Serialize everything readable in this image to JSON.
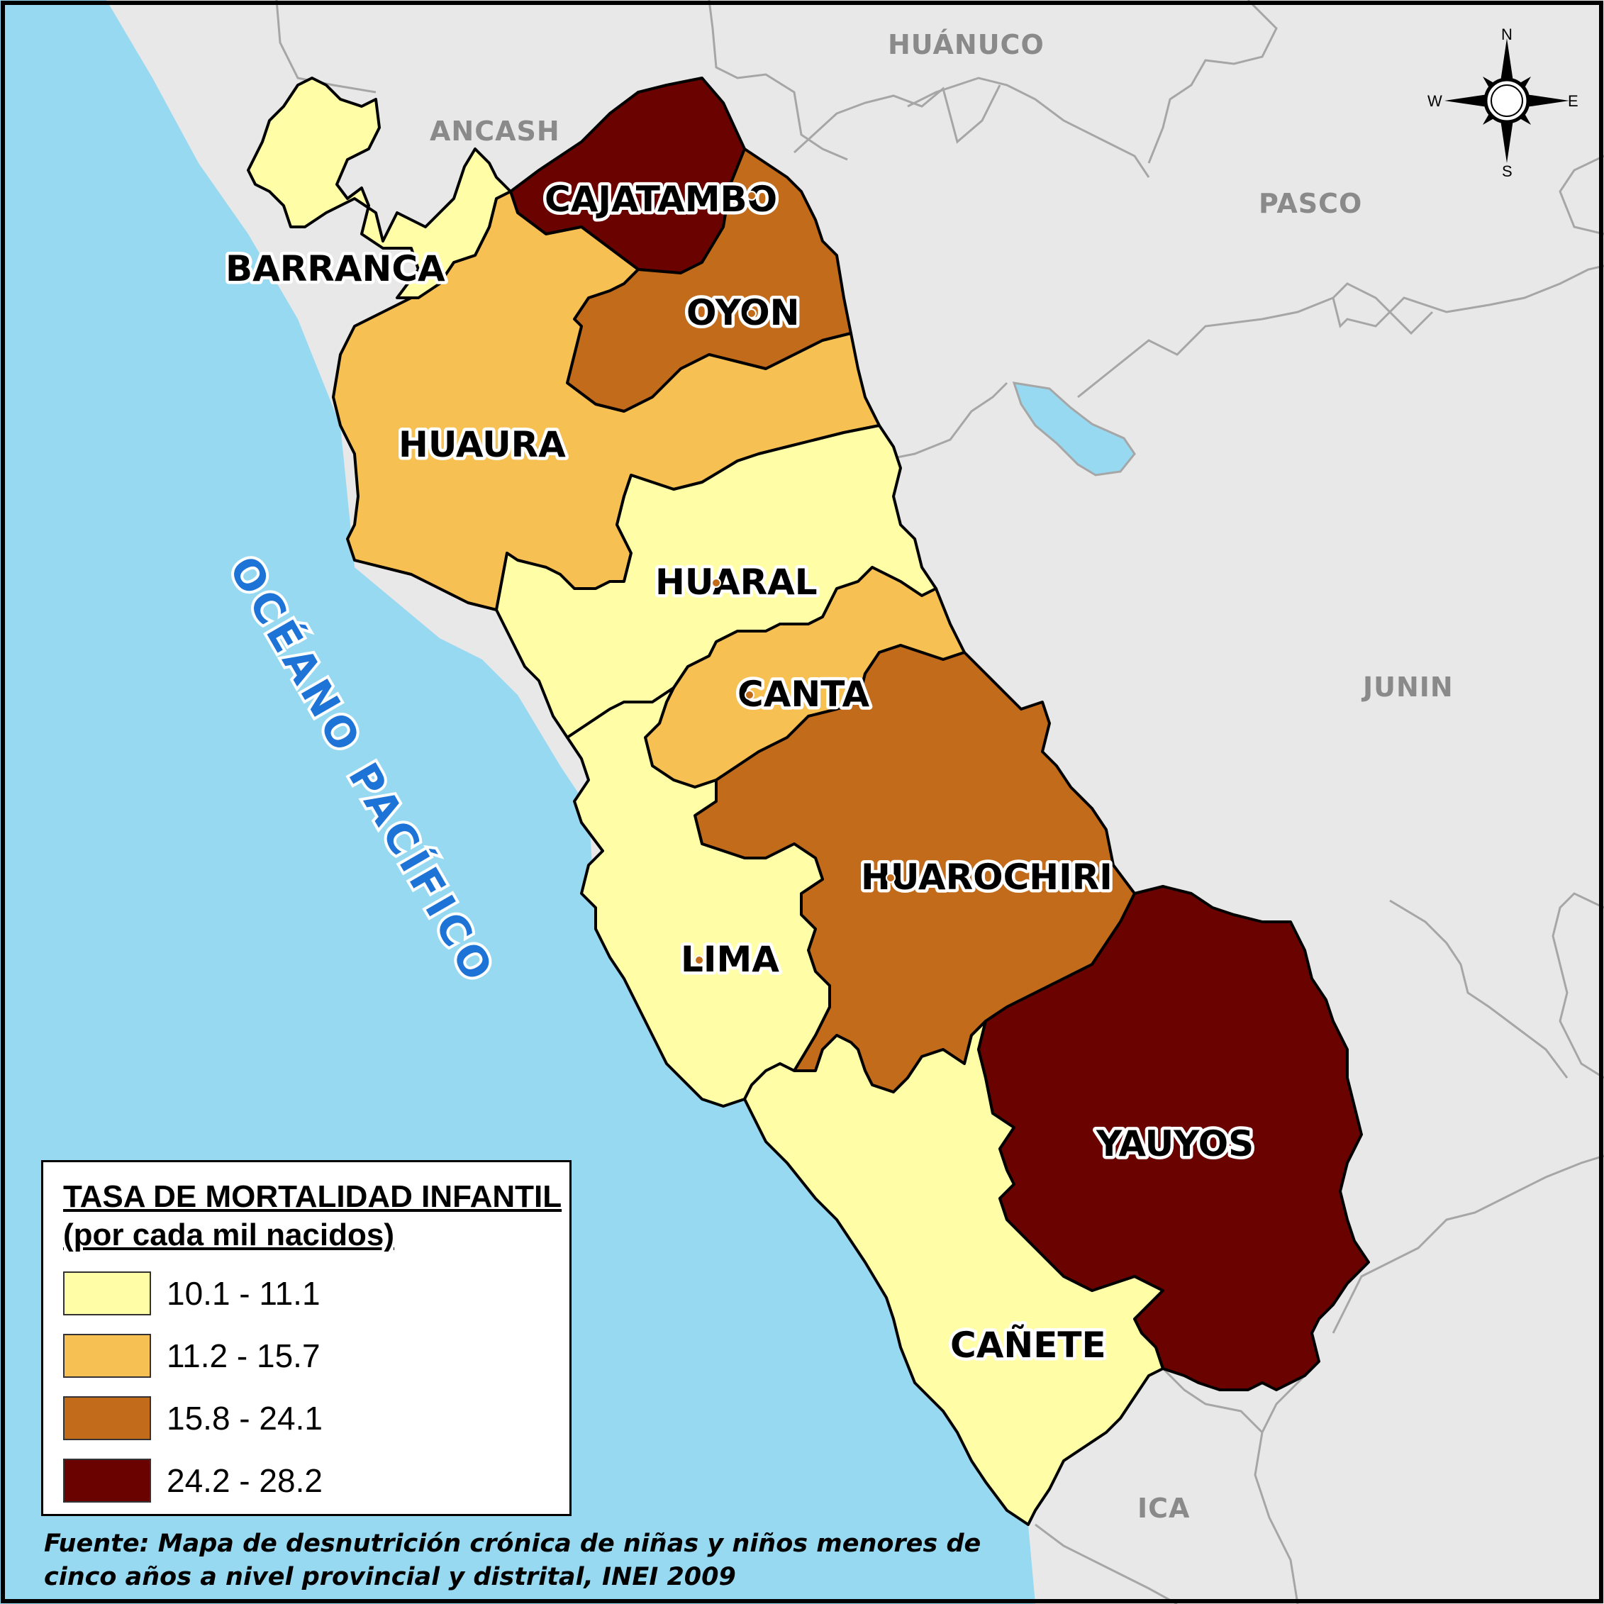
{
  "ocean_label": "OCÉANO PACÍFICO",
  "compass": {
    "n": "N",
    "s": "S",
    "e": "E",
    "w": "W"
  },
  "departments": {
    "ancash": "ANCASH",
    "huanuco": "HUÁNUCO",
    "pasco": "PASCO",
    "junin": "JUNIN",
    "ica": "ICA"
  },
  "provinces": {
    "barranca": {
      "name": "BARRANCA",
      "class": "10.1 - 11.1"
    },
    "cajatambo": {
      "name": "CAJATAMBO",
      "class": "24.2 - 28.2"
    },
    "oyon": {
      "name": "OYON",
      "class": "15.8 - 24.1"
    },
    "huaura": {
      "name": "HUAURA",
      "class": "11.2 - 15.7"
    },
    "huaral": {
      "name": "HUARAL",
      "class": "10.1 - 11.1"
    },
    "canta": {
      "name": "CANTA",
      "class": "11.2 - 15.7"
    },
    "huarochiri": {
      "name": "HUAROCHIRI",
      "class": "15.8 - 24.1"
    },
    "lima": {
      "name": "LIMA",
      "class": "10.1 - 11.1"
    },
    "yauyos": {
      "name": "YAUYOS",
      "class": "24.2 - 28.2"
    },
    "canete": {
      "name": "CAÑETE",
      "class": "10.1 - 11.1"
    }
  },
  "legend": {
    "title_line1": "TASA DE MORTALIDAD INFANTIL",
    "title_line2": "(por cada mil nacidos)",
    "items": [
      {
        "range": "10.1 - 11.1",
        "color": "#FFFDA6"
      },
      {
        "range": "11.2 - 15.7",
        "color": "#F6C052"
      },
      {
        "range": "15.8 - 24.1",
        "color": "#C26B1B"
      },
      {
        "range": "24.2 - 28.2",
        "color": "#6A0200"
      }
    ]
  },
  "source": {
    "line1": "Fuente: Mapa de desnutrición crónica de niñas y niños menores de",
    "line2": "cinco años a nivel provincial y distrital, INEI 2009"
  },
  "colors": {
    "ocean": "#97D9F1",
    "land": "#E8E8E8",
    "border": "#A6A6A6"
  }
}
